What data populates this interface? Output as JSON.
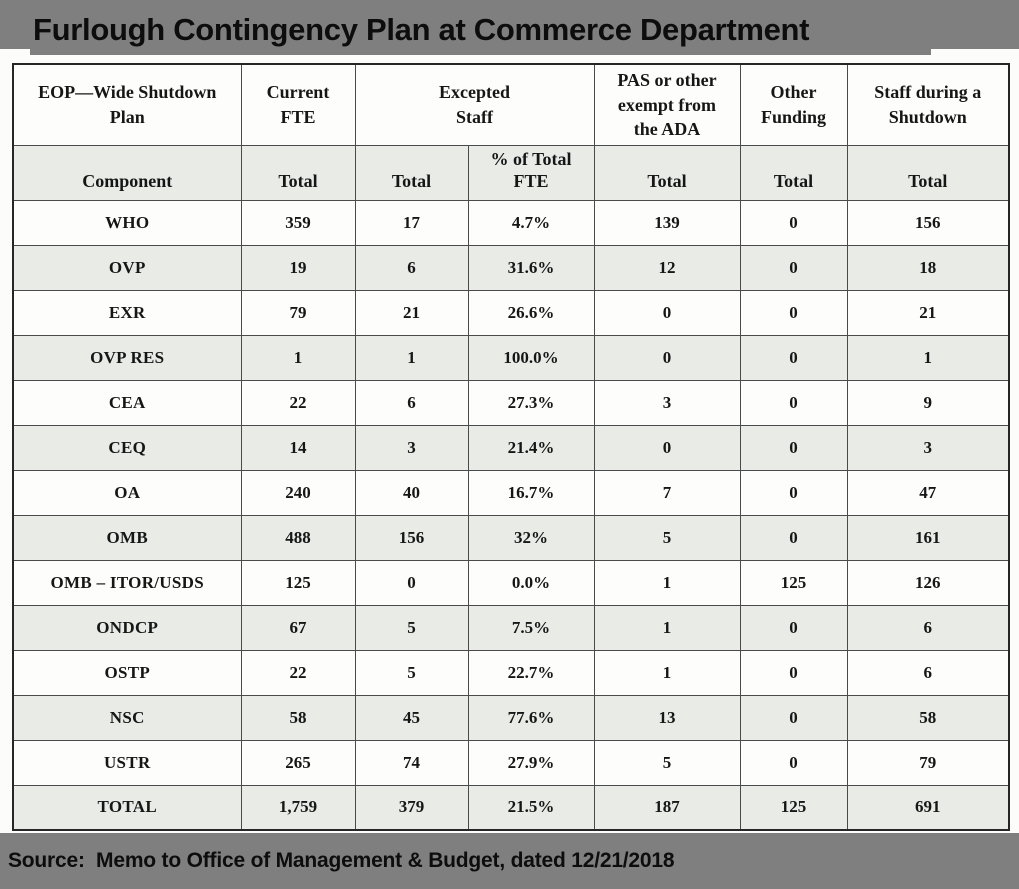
{
  "title": "Furlough Contingency Plan at Commerce Department",
  "source": "Source:  Memo to Office of Management & Budget, dated 12/21/2018",
  "colors": {
    "banner_gray": "#7f7f7f",
    "row_shade": "#e9ebe7",
    "inner_border": "#4a4a4a",
    "outer_border": "#262626"
  },
  "table": {
    "header_row1": [
      {
        "label": "EOP—Wide Shutdown\nPlan",
        "colspan": 1
      },
      {
        "label": "Current\nFTE",
        "colspan": 1
      },
      {
        "label": "Excepted\nStaff",
        "colspan": 2
      },
      {
        "label": "PAS or other\nexempt from\nthe ADA",
        "colspan": 1
      },
      {
        "label": "Other\nFunding",
        "colspan": 1
      },
      {
        "label": "Staff during a\nShutdown",
        "colspan": 1
      }
    ],
    "header_row2": [
      "Component",
      "Total",
      "Total",
      "% of Total\nFTE",
      "Total",
      "Total",
      "Total"
    ],
    "rows": [
      {
        "component": "WHO",
        "values": [
          "359",
          "17",
          "4.7%",
          "139",
          "0",
          "156"
        ],
        "shaded": false
      },
      {
        "component": "OVP",
        "values": [
          "19",
          "6",
          "31.6%",
          "12",
          "0",
          "18"
        ],
        "shaded": true
      },
      {
        "component": "EXR",
        "values": [
          "79",
          "21",
          "26.6%",
          "0",
          "0",
          "21"
        ],
        "shaded": false
      },
      {
        "component": "OVP RES",
        "values": [
          "1",
          "1",
          "100.0%",
          "0",
          "0",
          "1"
        ],
        "shaded": true
      },
      {
        "component": "CEA",
        "values": [
          "22",
          "6",
          "27.3%",
          "3",
          "0",
          "9"
        ],
        "shaded": false
      },
      {
        "component": "CEQ",
        "values": [
          "14",
          "3",
          "21.4%",
          "0",
          "0",
          "3"
        ],
        "shaded": true
      },
      {
        "component": "OA",
        "values": [
          "240",
          "40",
          "16.7%",
          "7",
          "0",
          "47"
        ],
        "shaded": false
      },
      {
        "component": "OMB",
        "values": [
          "488",
          "156",
          "32%",
          "5",
          "0",
          "161"
        ],
        "shaded": true
      },
      {
        "component": "OMB – ITOR/USDS",
        "values": [
          "125",
          "0",
          "0.0%",
          "1",
          "125",
          "126"
        ],
        "shaded": false
      },
      {
        "component": "ONDCP",
        "values": [
          "67",
          "5",
          "7.5%",
          "1",
          "0",
          "6"
        ],
        "shaded": true
      },
      {
        "component": "OSTP",
        "values": [
          "22",
          "5",
          "22.7%",
          "1",
          "0",
          "6"
        ],
        "shaded": false
      },
      {
        "component": "NSC",
        "values": [
          "58",
          "45",
          "77.6%",
          "13",
          "0",
          "58"
        ],
        "shaded": true
      },
      {
        "component": "USTR",
        "values": [
          "265",
          "74",
          "27.9%",
          "5",
          "0",
          "79"
        ],
        "shaded": false
      },
      {
        "component": "TOTAL",
        "values": [
          "1,759",
          "379",
          "21.5%",
          "187",
          "125",
          "691"
        ],
        "shaded": true
      }
    ]
  }
}
